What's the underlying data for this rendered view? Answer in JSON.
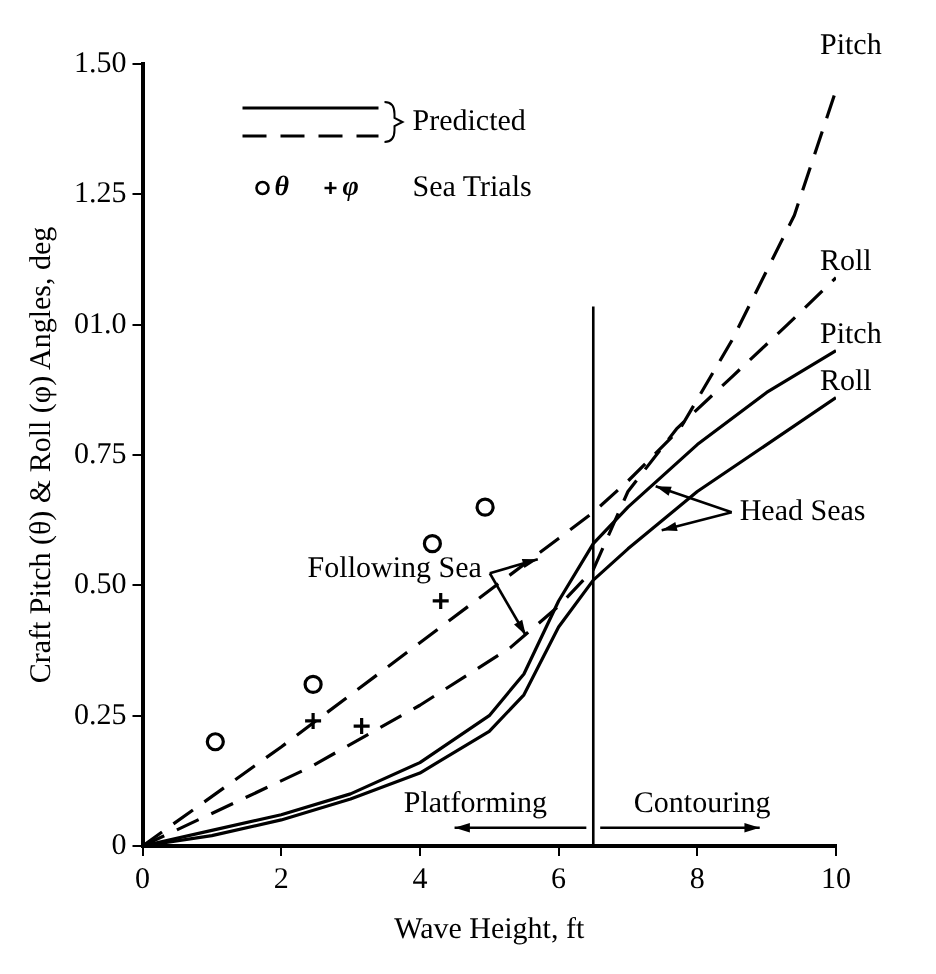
{
  "chart_data": {
    "type": "line",
    "xlabel": "Wave Height, ft",
    "ylabel": "Craft Pitch (θ) & Roll (φ) Angles, deg",
    "xlim": [
      0,
      10
    ],
    "xticks": [
      0,
      2,
      4,
      6,
      8,
      10
    ],
    "ylim": [
      0,
      1.5
    ],
    "yticks": [
      0,
      {
        "value": 0.25,
        "label": "0.25"
      },
      {
        "value": 0.5,
        "label": "0.50"
      },
      {
        "value": 0.75,
        "label": "0.75"
      },
      {
        "value": 1,
        "label": "01.0"
      },
      {
        "value": 1.25,
        "label": "1.25"
      },
      {
        "value": 1.5,
        "label": "1.50"
      }
    ],
    "grid": false,
    "legend": "top left",
    "series": [
      {
        "name": "Pitch",
        "color": "#000000",
        "line_style": "dashed",
        "x": [
          0,
          2,
          4,
          6,
          6.5,
          7,
          7.75,
          8.5,
          9.4,
          10
        ],
        "values": [
          0,
          0.19,
          0.39,
          0.59,
          0.64,
          0.7,
          0.8,
          0.97,
          1.21,
          1.45
        ]
      },
      {
        "name": "Roll",
        "color": "#000000",
        "line_style": "dashed",
        "x": [
          0,
          2.4,
          4,
          5.3,
          6,
          6.5,
          7,
          7.7,
          8.5,
          9.3,
          10
        ],
        "values": [
          0,
          0.15,
          0.27,
          0.38,
          0.46,
          0.53,
          0.68,
          0.8,
          0.9,
          1.0,
          1.09
        ]
      },
      {
        "name": "Pitch",
        "color": "#000000",
        "line_style": "solid",
        "x": [
          0,
          1,
          2,
          3,
          4,
          5,
          5.5,
          6,
          6.5,
          7,
          8,
          9,
          10
        ],
        "values": [
          0,
          0.03,
          0.06,
          0.1,
          0.16,
          0.25,
          0.33,
          0.47,
          0.58,
          0.65,
          0.77,
          0.87,
          0.95
        ]
      },
      {
        "name": "Roll",
        "color": "#000000",
        "line_style": "solid",
        "x": [
          0,
          1,
          2,
          3,
          4,
          5,
          5.5,
          6,
          6.5,
          7,
          8,
          9,
          10
        ],
        "values": [
          0,
          0.02,
          0.05,
          0.09,
          0.14,
          0.22,
          0.29,
          0.42,
          0.51,
          0.57,
          0.68,
          0.77,
          0.86
        ]
      },
      {
        "name": "θ",
        "type": "scatter",
        "marker": "circle",
        "color": "#000000",
        "x": [
          1.05,
          2.46,
          4.18,
          4.94
        ],
        "values": [
          0.2,
          0.31,
          0.58,
          0.65
        ]
      },
      {
        "name": "φ",
        "type": "scatter",
        "marker": "cross",
        "color": "#000000",
        "x": [
          2.46,
          3.16,
          4.3
        ],
        "values": [
          0.24,
          0.23,
          0.47
        ]
      }
    ],
    "ref_lines": [
      {
        "axis": "x",
        "value": 6.5,
        "color": "#000000"
      }
    ],
    "annotations": [
      "Predicted",
      "Sea Trials",
      {
        "text": "Following Sea",
        "x": 5.7,
        "y": 0.55
      },
      {
        "text": "Head Seas",
        "x": 7.4,
        "y": 0.69
      },
      "Platforming",
      "Contouring"
    ]
  }
}
